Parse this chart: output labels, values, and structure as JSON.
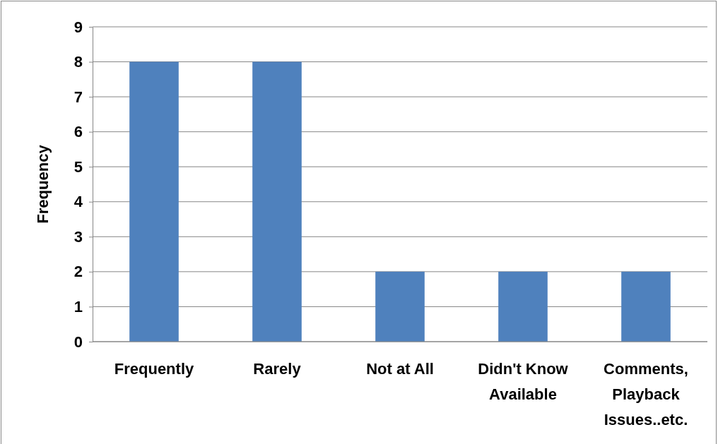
{
  "chart_data": {
    "type": "bar",
    "ylabel": "Frequency",
    "categories": [
      "Frequently",
      "Rarely",
      "Not at All",
      "Didn't Know Available",
      "Comments, Playback Issues..etc."
    ],
    "values": [
      8,
      8,
      2,
      2,
      2
    ],
    "color": "#4f81bd",
    "ylim": [
      0,
      9
    ],
    "yticks": [
      0,
      1,
      2,
      3,
      4,
      5,
      6,
      7,
      8,
      9
    ],
    "grid": "y"
  }
}
